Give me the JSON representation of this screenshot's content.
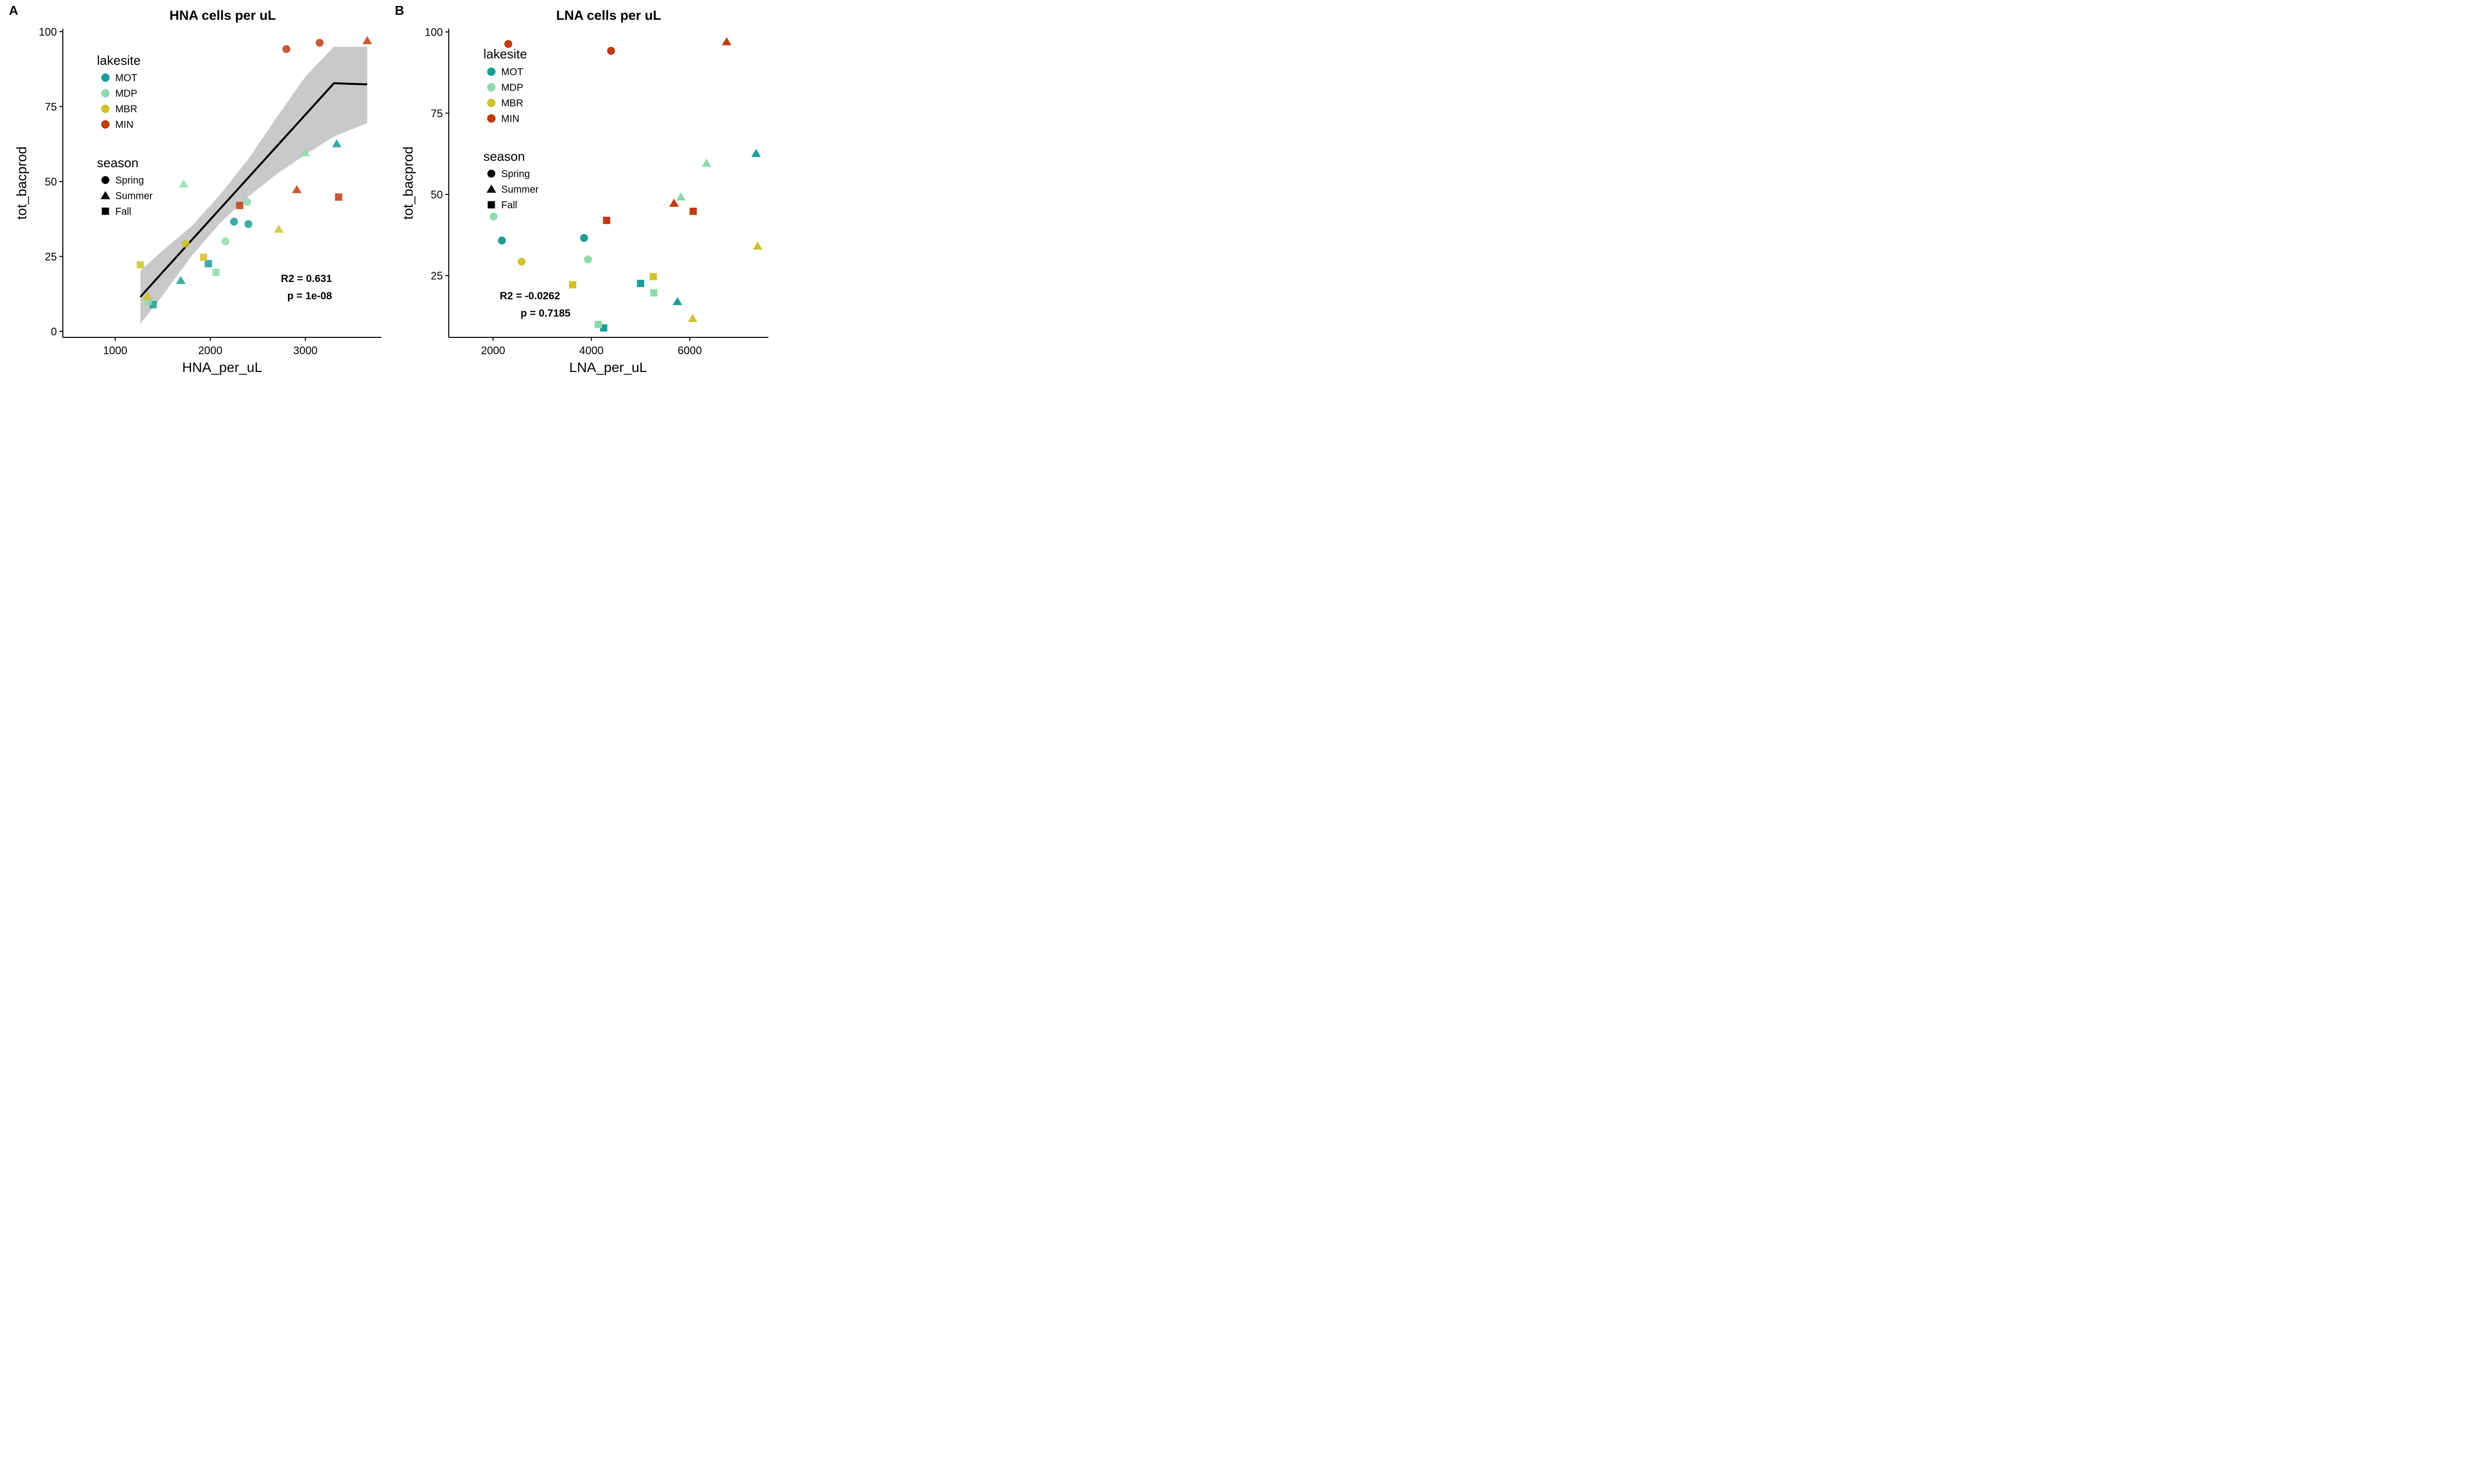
{
  "colors": {
    "MOT": "#1a9f97",
    "MDP": "#8fdaad",
    "MBR": "#d0c22a",
    "MIN": "#bf3b10",
    "ribbon": "#c9c9c9",
    "line": "#000000"
  },
  "legend": {
    "lakesite_title": "lakesite",
    "lakesite_items": [
      "MOT",
      "MDP",
      "MBR",
      "MIN"
    ],
    "season_title": "season",
    "season_items": [
      {
        "label": "Spring",
        "shape": "circle"
      },
      {
        "label": "Summer",
        "shape": "triangle"
      },
      {
        "label": "Fall",
        "shape": "square"
      }
    ]
  },
  "chart_data": [
    {
      "panel": "A",
      "type": "scatter",
      "title": "HNA cells per uL",
      "xlabel": "HNA_per_uL",
      "ylabel": "tot_bacprod",
      "xlim": [
        450,
        3800
      ],
      "ylim": [
        -2,
        101
      ],
      "xticks": [
        1000,
        2000,
        3000
      ],
      "yticks": [
        0,
        25,
        50,
        75,
        100
      ],
      "annotation": [
        "R2 = 0.631",
        "p = 1e-08"
      ],
      "fit": {
        "x": [
          1265,
          1500,
          1800,
          2100,
          2400,
          2700,
          3000,
          3300,
          3650
        ],
        "y": [
          11.5,
          19.8,
          30.3,
          40.8,
          51.3,
          61.8,
          72.3,
          82.8,
          82.4
        ],
        "lower": [
          2.5,
          12.0,
          25.0,
          36.0,
          45.0,
          52.5,
          59.0,
          65.0,
          69.5
        ],
        "upper": [
          20.2,
          27.0,
          35.0,
          45.5,
          57.5,
          71.5,
          85.0,
          95.0,
          95.0
        ]
      },
      "points": [
        {
          "x": 2800,
          "y": 94.2,
          "site": "MIN",
          "season": "Spring"
        },
        {
          "x": 3150,
          "y": 96.3,
          "site": "MIN",
          "season": "Spring"
        },
        {
          "x": 3650,
          "y": 97.0,
          "site": "MIN",
          "season": "Summer"
        },
        {
          "x": 2910,
          "y": 47.3,
          "site": "MIN",
          "season": "Summer"
        },
        {
          "x": 3350,
          "y": 44.8,
          "site": "MIN",
          "season": "Fall"
        },
        {
          "x": 2310,
          "y": 42.0,
          "site": "MIN",
          "season": "Fall"
        },
        {
          "x": 3330,
          "y": 62.6,
          "site": "MOT",
          "season": "Summer"
        },
        {
          "x": 1690,
          "y": 17.0,
          "site": "MOT",
          "season": "Summer"
        },
        {
          "x": 2250,
          "y": 36.6,
          "site": "MOT",
          "season": "Spring"
        },
        {
          "x": 2400,
          "y": 35.8,
          "site": "MOT",
          "season": "Spring"
        },
        {
          "x": 1980,
          "y": 22.6,
          "site": "MOT",
          "season": "Fall"
        },
        {
          "x": 1400,
          "y": 8.9,
          "site": "MOT",
          "season": "Fall"
        },
        {
          "x": 3000,
          "y": 59.6,
          "site": "MDP",
          "season": "Summer"
        },
        {
          "x": 1720,
          "y": 49.2,
          "site": "MDP",
          "season": "Summer"
        },
        {
          "x": 2390,
          "y": 43.2,
          "site": "MDP",
          "season": "Spring"
        },
        {
          "x": 2160,
          "y": 30.0,
          "site": "MDP",
          "season": "Spring"
        },
        {
          "x": 2060,
          "y": 19.7,
          "site": "MDP",
          "season": "Fall"
        },
        {
          "x": 1350,
          "y": 10.0,
          "site": "MDP",
          "season": "Fall"
        },
        {
          "x": 2720,
          "y": 34.1,
          "site": "MBR",
          "season": "Summer"
        },
        {
          "x": 1340,
          "y": 11.8,
          "site": "MBR",
          "season": "Summer"
        },
        {
          "x": 1740,
          "y": 29.3,
          "site": "MBR",
          "season": "Spring"
        },
        {
          "x": 1930,
          "y": 24.7,
          "site": "MBR",
          "season": "Fall"
        },
        {
          "x": 1265,
          "y": 22.2,
          "site": "MBR",
          "season": "Fall"
        }
      ]
    },
    {
      "panel": "B",
      "type": "scatter",
      "title": "LNA cells per uL",
      "xlabel": "LNA_per_uL",
      "ylabel": "tot_bacprod",
      "xlim": [
        1100,
        7600
      ],
      "ylim": [
        6,
        101
      ],
      "xticks": [
        2000,
        4000,
        6000
      ],
      "yticks": [
        25,
        50,
        75,
        100
      ],
      "annotation": [
        "R2 = -0.0262",
        "p = 0.7185"
      ],
      "points": [
        {
          "x": 2310,
          "y": 96.3,
          "site": "MIN",
          "season": "Spring"
        },
        {
          "x": 4400,
          "y": 94.2,
          "site": "MIN",
          "season": "Spring"
        },
        {
          "x": 6750,
          "y": 97.0,
          "site": "MIN",
          "season": "Summer"
        },
        {
          "x": 5680,
          "y": 47.3,
          "site": "MIN",
          "season": "Summer"
        },
        {
          "x": 6070,
          "y": 44.8,
          "site": "MIN",
          "season": "Fall"
        },
        {
          "x": 4310,
          "y": 42.0,
          "site": "MIN",
          "season": "Fall"
        },
        {
          "x": 7350,
          "y": 62.6,
          "site": "MOT",
          "season": "Summer"
        },
        {
          "x": 5750,
          "y": 17.0,
          "site": "MOT",
          "season": "Summer"
        },
        {
          "x": 3850,
          "y": 36.6,
          "site": "MOT",
          "season": "Spring"
        },
        {
          "x": 2180,
          "y": 35.8,
          "site": "MOT",
          "season": "Spring"
        },
        {
          "x": 5000,
          "y": 22.6,
          "site": "MOT",
          "season": "Fall"
        },
        {
          "x": 4250,
          "y": 8.9,
          "site": "MOT",
          "season": "Fall"
        },
        {
          "x": 6340,
          "y": 59.6,
          "site": "MDP",
          "season": "Summer"
        },
        {
          "x": 5820,
          "y": 49.2,
          "site": "MDP",
          "season": "Summer"
        },
        {
          "x": 2010,
          "y": 43.2,
          "site": "MDP",
          "season": "Spring"
        },
        {
          "x": 3930,
          "y": 30.0,
          "site": "MDP",
          "season": "Spring"
        },
        {
          "x": 5270,
          "y": 19.7,
          "site": "MDP",
          "season": "Fall"
        },
        {
          "x": 4140,
          "y": 10.0,
          "site": "MDP",
          "season": "Fall"
        },
        {
          "x": 7380,
          "y": 34.1,
          "site": "MBR",
          "season": "Summer"
        },
        {
          "x": 6060,
          "y": 11.8,
          "site": "MBR",
          "season": "Summer"
        },
        {
          "x": 2580,
          "y": 29.3,
          "site": "MBR",
          "season": "Spring"
        },
        {
          "x": 5260,
          "y": 24.7,
          "site": "MBR",
          "season": "Fall"
        },
        {
          "x": 3620,
          "y": 22.2,
          "site": "MBR",
          "season": "Fall"
        }
      ]
    }
  ]
}
